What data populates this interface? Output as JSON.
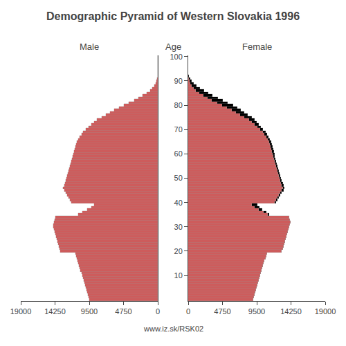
{
  "chart_data": [
    {
      "type": "bar",
      "orientation": "horizontal",
      "title": "Demographic Pyramid of Western Slovakia 1996",
      "xlabel": "Male",
      "annotations": [
        "www.iz.sk/RSK02"
      ],
      "categories": [
        0,
        1,
        2,
        3,
        4,
        5,
        6,
        7,
        8,
        9,
        10,
        11,
        12,
        13,
        14,
        15,
        16,
        17,
        18,
        19,
        20,
        21,
        22,
        23,
        24,
        25,
        26,
        27,
        28,
        29,
        30,
        31,
        32,
        33,
        34,
        35,
        36,
        37,
        38,
        39,
        40,
        41,
        42,
        43,
        44,
        45,
        46,
        47,
        48,
        49,
        50,
        51,
        52,
        53,
        54,
        55,
        56,
        57,
        58,
        59,
        60,
        61,
        62,
        63,
        64,
        65,
        66,
        67,
        68,
        69,
        70,
        71,
        72,
        73,
        74,
        75,
        76,
        77,
        78,
        79,
        80,
        81,
        82,
        83,
        84,
        85,
        86,
        87,
        88,
        89,
        90,
        91,
        92,
        93,
        94,
        95,
        96,
        97,
        98,
        99,
        100
      ],
      "series": [
        {
          "color": "#cd5c5c",
          "values": [
            9500,
            9600,
            9700,
            9800,
            9900,
            10000,
            10100,
            10200,
            10300,
            10400,
            10500,
            10600,
            10700,
            10800,
            10900,
            11000,
            11100,
            11200,
            11300,
            11400,
            13500,
            13600,
            13700,
            13800,
            13900,
            14000,
            14100,
            14200,
            14300,
            14400,
            14500,
            14500,
            14400,
            14300,
            14200,
            11000,
            10500,
            9800,
            9200,
            8800,
            12000,
            12200,
            12400,
            12600,
            12800,
            13000,
            13100,
            13000,
            12900,
            12800,
            12700,
            12600,
            12500,
            12400,
            12300,
            12200,
            12100,
            12000,
            11900,
            11800,
            11700,
            11600,
            11500,
            11400,
            11300,
            11200,
            11000,
            10800,
            10600,
            10400,
            10000,
            9600,
            9200,
            8800,
            8400,
            7800,
            7200,
            6600,
            6000,
            5400,
            4700,
            4000,
            3300,
            2700,
            2100,
            1550,
            1100,
            750,
            480,
            280,
            150,
            70,
            30,
            11,
            4,
            2,
            1,
            0,
            0,
            0,
            0
          ]
        }
      ],
      "xlim": [
        19000,
        0
      ],
      "xticks": [
        19000,
        14250,
        9500,
        4750,
        0
      ],
      "ylim": [
        -0.5,
        100.5
      ],
      "yticks": [
        10,
        20,
        30,
        40,
        50,
        60,
        70,
        80,
        90,
        100
      ],
      "tick_labels": "x",
      "grid": false
    },
    {
      "type": "bar",
      "orientation": "horizontal",
      "stacked": true,
      "xlabel": "Female",
      "ylabel": "Age",
      "categories": [
        0,
        1,
        2,
        3,
        4,
        5,
        6,
        7,
        8,
        9,
        10,
        11,
        12,
        13,
        14,
        15,
        16,
        17,
        18,
        19,
        20,
        21,
        22,
        23,
        24,
        25,
        26,
        27,
        28,
        29,
        30,
        31,
        32,
        33,
        34,
        35,
        36,
        37,
        38,
        39,
        40,
        41,
        42,
        43,
        44,
        45,
        46,
        47,
        48,
        49,
        50,
        51,
        52,
        53,
        54,
        55,
        56,
        57,
        58,
        59,
        60,
        61,
        62,
        63,
        64,
        65,
        66,
        67,
        68,
        69,
        70,
        71,
        72,
        73,
        74,
        75,
        76,
        77,
        78,
        79,
        80,
        81,
        82,
        83,
        84,
        85,
        86,
        87,
        88,
        89,
        90,
        91,
        92,
        93,
        94,
        95,
        96,
        97,
        98,
        99,
        100
      ],
      "series": [
        {
          "color": "#cd5c5c",
          "values": [
            9000,
            9100,
            9200,
            9300,
            9400,
            9500,
            9600,
            9700,
            9800,
            9900,
            10000,
            10100,
            10200,
            10300,
            10400,
            10500,
            10600,
            10700,
            10800,
            10900,
            13000,
            13100,
            13200,
            13300,
            13400,
            13500,
            13600,
            13700,
            13800,
            13900,
            14000,
            14100,
            14200,
            14100,
            14000,
            11000,
            10500,
            9800,
            9200,
            8800,
            12000,
            12200,
            12400,
            12600,
            12800,
            13000,
            13100,
            13000,
            12900,
            12800,
            12700,
            12600,
            12500,
            12400,
            12300,
            12200,
            12100,
            12000,
            11900,
            11800,
            11700,
            11600,
            11500,
            11400,
            11300,
            11200,
            11000,
            10800,
            10600,
            10400,
            10000,
            9600,
            9200,
            8800,
            8400,
            7800,
            7200,
            6600,
            6000,
            5400,
            4700,
            4000,
            3300,
            2700,
            2100,
            1550,
            1100,
            750,
            480,
            280,
            150,
            70,
            30,
            11,
            4,
            2,
            1,
            0,
            0,
            0,
            0
          ]
        },
        {
          "color": "#000000",
          "values": [
            0,
            0,
            0,
            0,
            0,
            0,
            0,
            0,
            0,
            0,
            0,
            0,
            0,
            0,
            0,
            0,
            0,
            0,
            0,
            0,
            0,
            0,
            0,
            0,
            0,
            0,
            0,
            0,
            0,
            0,
            0,
            0,
            0,
            0,
            0,
            200,
            300,
            500,
            700,
            800,
            200,
            200,
            200,
            200,
            200,
            200,
            200,
            200,
            200,
            200,
            200,
            200,
            200,
            200,
            200,
            200,
            200,
            200,
            200,
            200,
            300,
            300,
            300,
            300,
            300,
            300,
            300,
            300,
            300,
            300,
            400,
            500,
            600,
            700,
            800,
            1000,
            1100,
            1200,
            1300,
            1400,
            1500,
            1500,
            1500,
            1400,
            1300,
            1250,
            1100,
            900,
            670,
            470,
            300,
            170,
            80,
            34,
            12,
            4,
            1,
            1,
            0,
            0,
            0
          ]
        }
      ],
      "xlim": [
        0,
        19000
      ],
      "xticks": [
        0,
        4750,
        9500,
        14250,
        19000
      ],
      "ylim": [
        -0.5,
        100.5
      ],
      "yticks": [
        10,
        20,
        30,
        40,
        50,
        60,
        70,
        80,
        90,
        100
      ],
      "grid": false
    }
  ]
}
